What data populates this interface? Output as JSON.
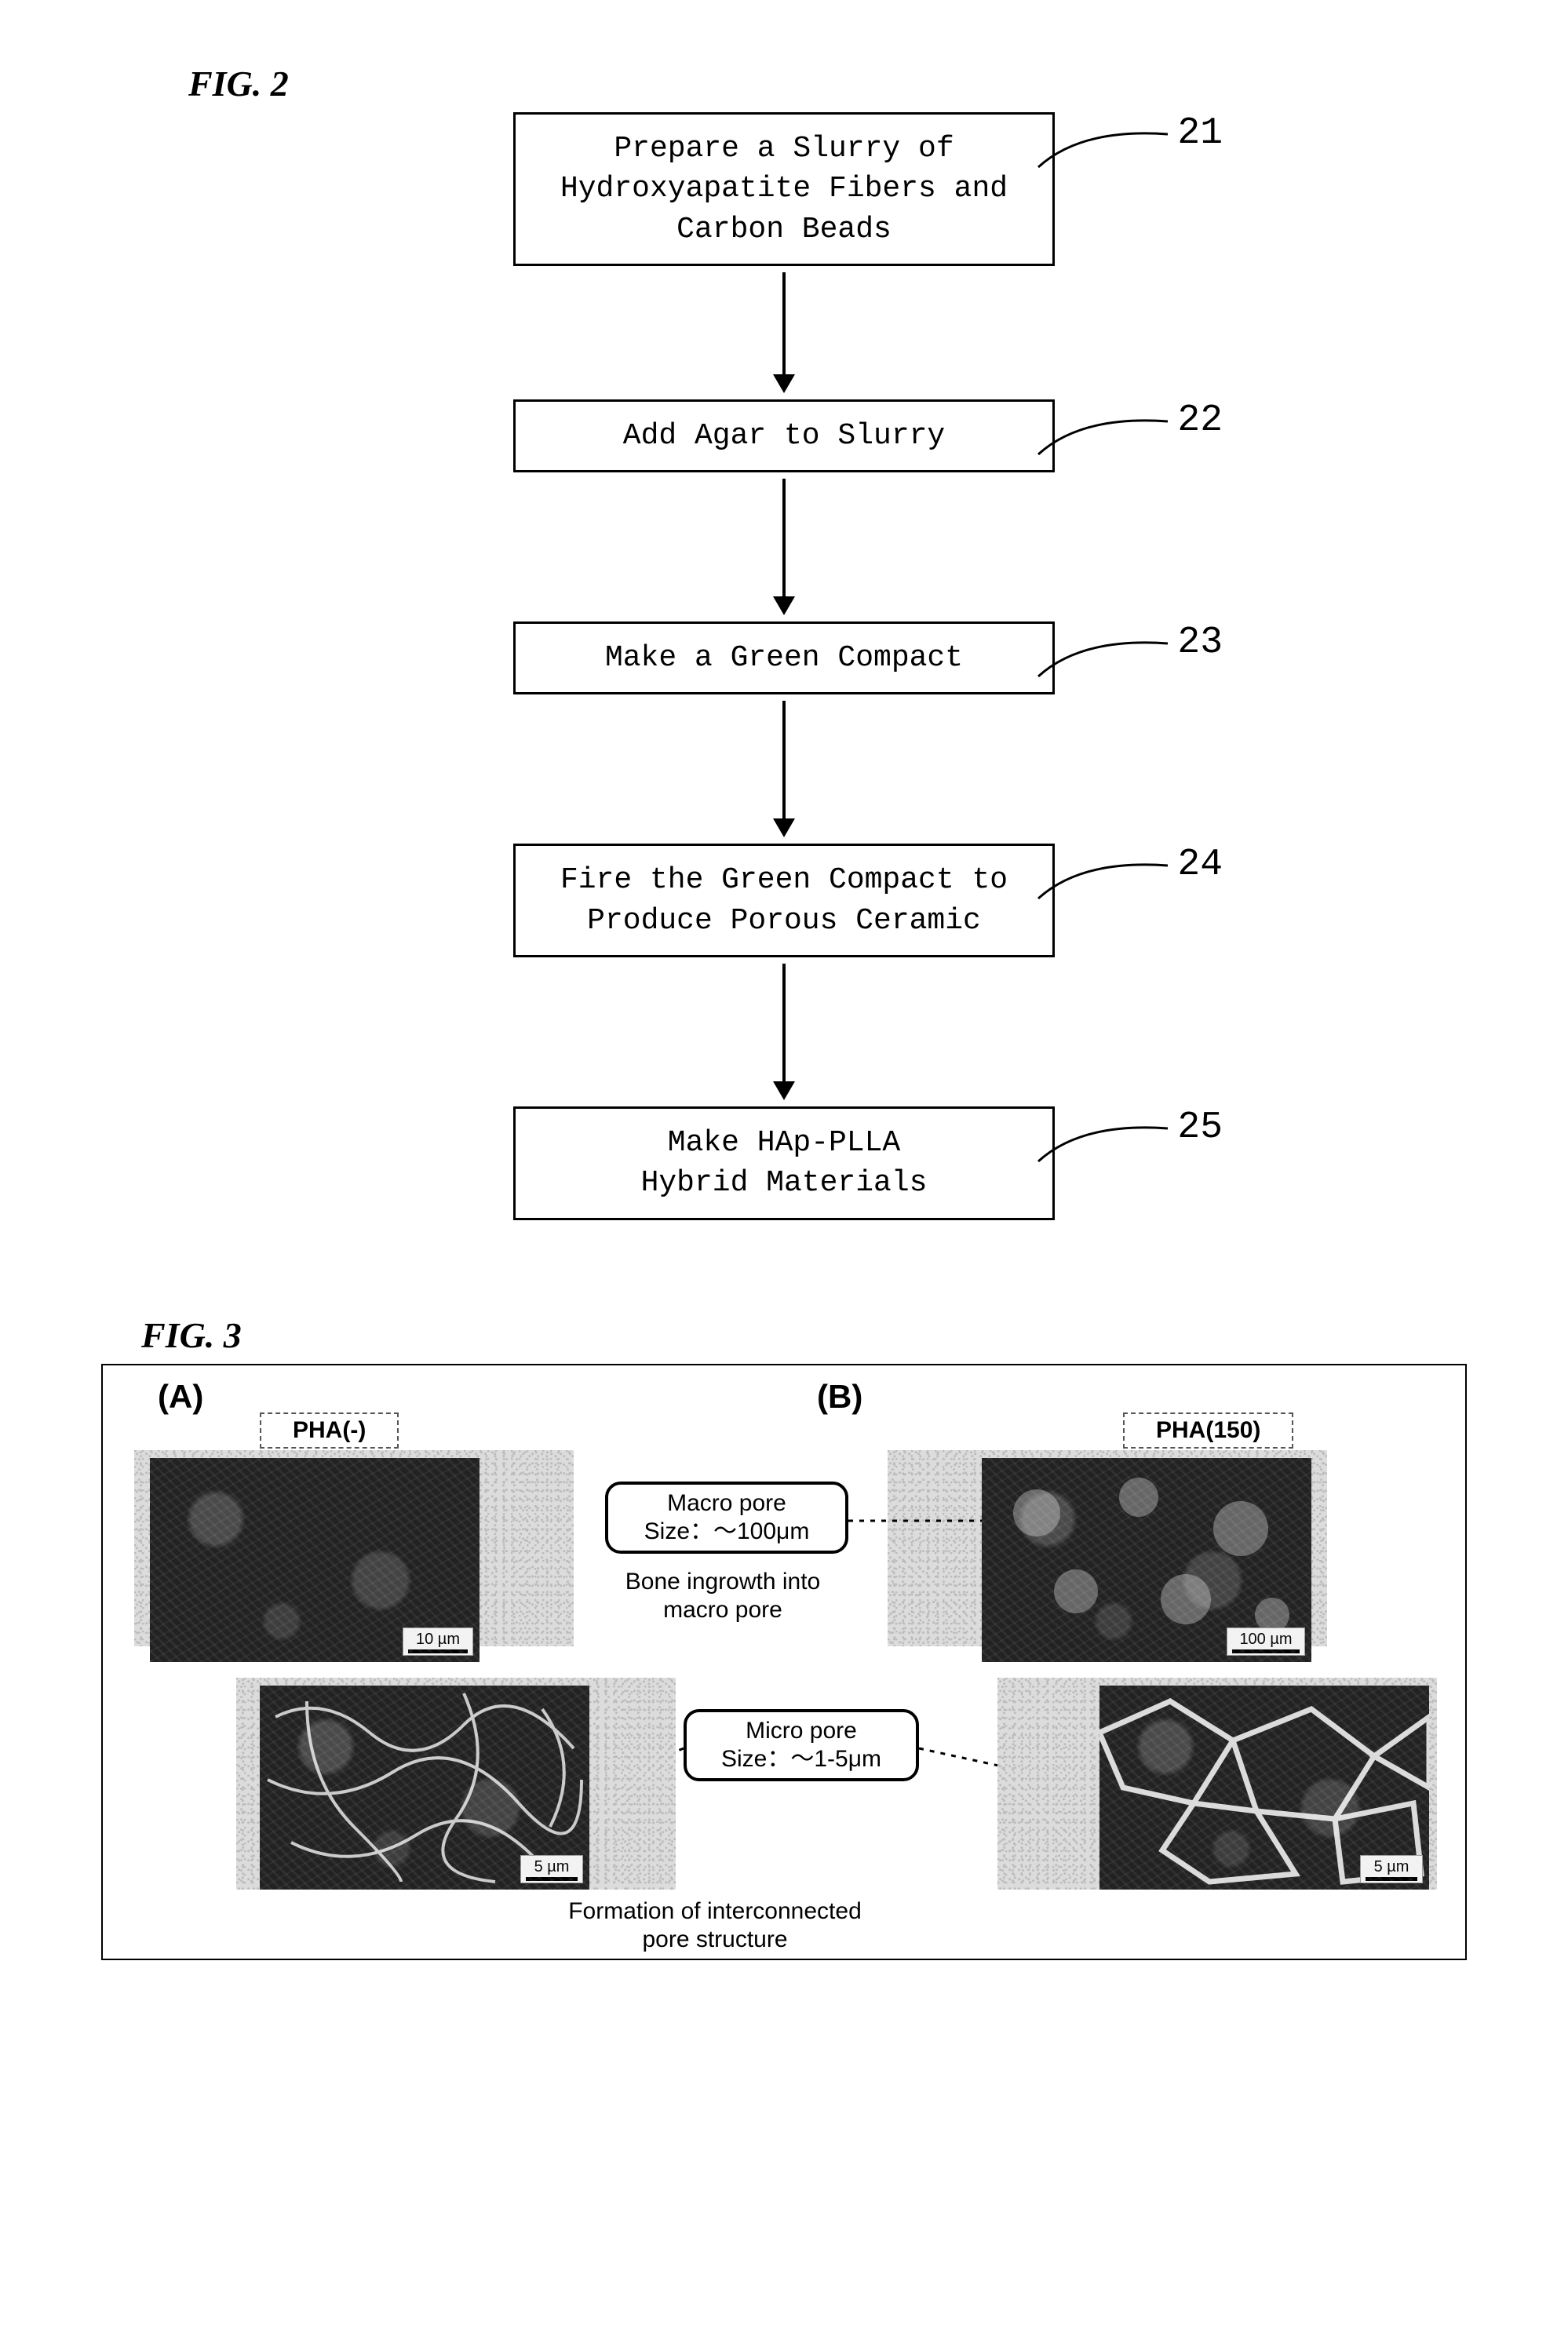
{
  "figure2": {
    "label": "FIG. 2",
    "steps": [
      {
        "num": "21",
        "text": "Prepare a Slurry of\nHydroxyapatite Fibers and\nCarbon Beads",
        "arrow_len": 130
      },
      {
        "num": "22",
        "text": "Add Agar to Slurry",
        "arrow_len": 150
      },
      {
        "num": "23",
        "text": "Make a Green Compact",
        "arrow_len": 150
      },
      {
        "num": "24",
        "text": "Fire the Green Compact to\nProduce Porous Ceramic",
        "arrow_len": 150
      },
      {
        "num": "25",
        "text": "Make HAp-PLLA\nHybrid Materials",
        "arrow_len": 0
      }
    ]
  },
  "figure3": {
    "label": "FIG. 3",
    "panelA": {
      "letter": "(A)",
      "tag": "PHA(-)"
    },
    "panelB": {
      "letter": "(B)",
      "tag": "PHA(150)"
    },
    "macro": {
      "title": "Macro pore",
      "size": "Size：～100μm",
      "caption": "Bone ingrowth into\nmacro pore"
    },
    "micro": {
      "title": "Micro pore",
      "size": "Size：～1-5μm",
      "caption": "Formation of interconnected\npore structure"
    },
    "scales": {
      "a_top": "10 µm",
      "a_bot": "5 µm",
      "b_top": "100 µm",
      "b_bot": "5 µm"
    },
    "colors": {
      "dark": "#1e1e1e",
      "grain": "#d8d8d8",
      "border": "#000000"
    }
  }
}
